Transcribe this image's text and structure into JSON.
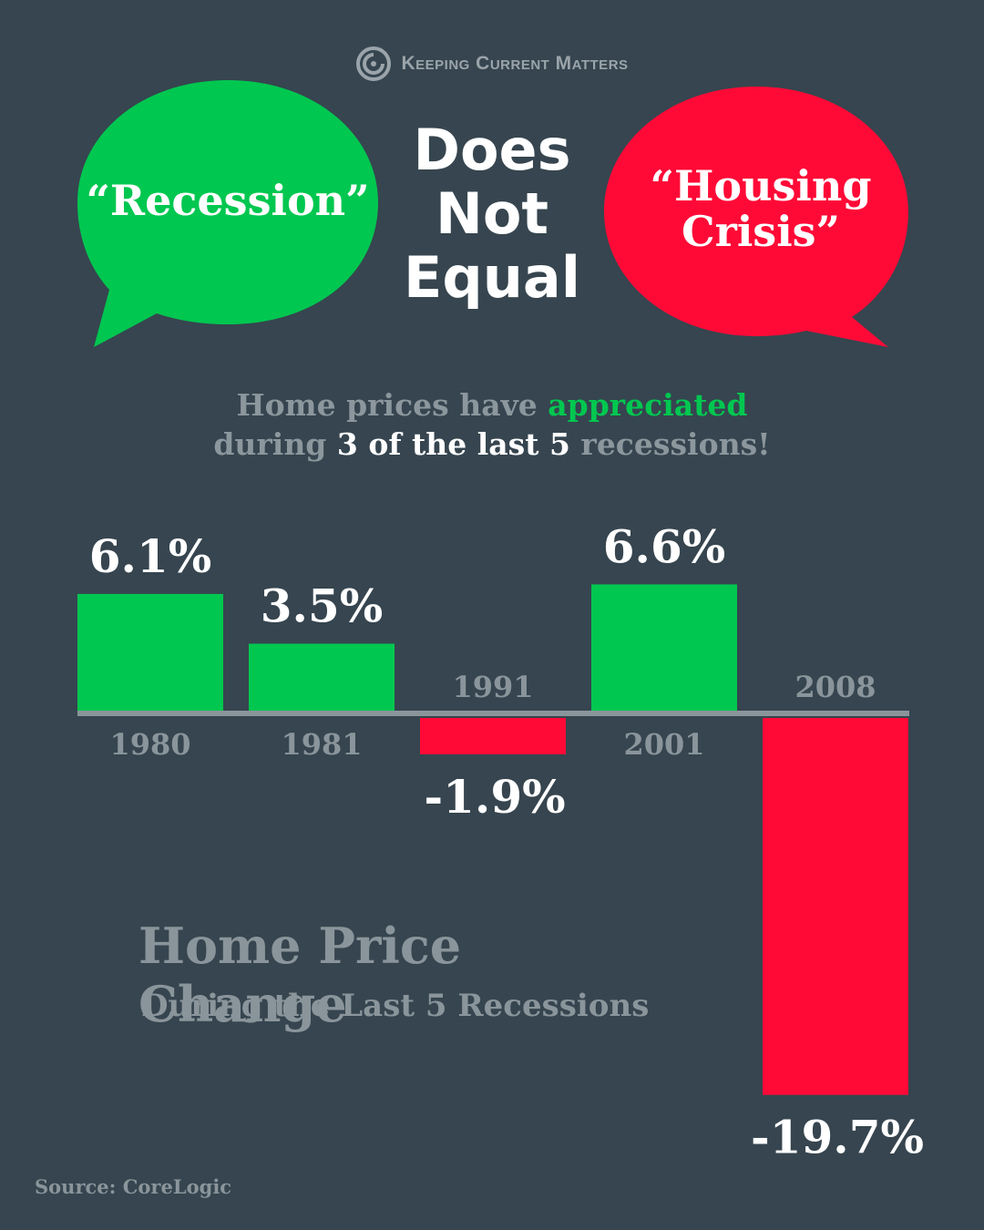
{
  "brand": {
    "name": "Keeping Current Matters",
    "logo_icon": "kcm-spiral-icon"
  },
  "bubbles": {
    "left": {
      "text": "“Recession”",
      "color": "#00c750"
    },
    "right": {
      "line1": "“Housing",
      "line2": "Crisis”",
      "color": "#ff0a37"
    }
  },
  "center_title": {
    "line1": "Does",
    "line2": "Not",
    "line3": "Equal"
  },
  "headline": {
    "part1": "Home prices have ",
    "part2": "appreciated",
    "part3": "during ",
    "part4": "3 of the last 5",
    "part5": " recessions!"
  },
  "chart_data": {
    "type": "bar",
    "title": "Home Price Change",
    "subtitle": "During the Last 5 Recessions",
    "categories": [
      "1980",
      "1981",
      "1991",
      "2001",
      "2008"
    ],
    "values": [
      6.1,
      3.5,
      -1.9,
      6.6,
      -19.7
    ],
    "value_labels": [
      "6.1%",
      "3.5%",
      "-1.9%",
      "6.6%",
      "-19.7%"
    ],
    "positive_color": "#00c750",
    "negative_color": "#ff0a37",
    "baseline_color": "#8a959b",
    "ylim": [
      -19.7,
      6.6
    ],
    "grid": false
  },
  "source": "Source: CoreLogic"
}
